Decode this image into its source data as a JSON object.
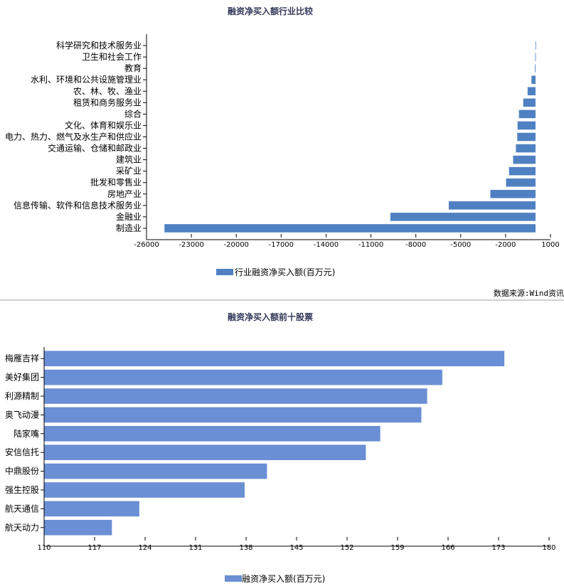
{
  "chart_data": [
    {
      "type": "bar",
      "orientation": "horizontal",
      "title": "融资净买入额行业比较",
      "categories": [
        "科学研究和技术服务业",
        "卫生和社会工作",
        "教育",
        "水利、环境和公共设施管理业",
        "农、林、牧、渔业",
        "租赁和商务服务业",
        "综合",
        "文化、体育和娱乐业",
        "电力、热力、燃气及水生产和供应业",
        "交通运输、仓储和邮政业",
        "建筑业",
        "采矿业",
        "批发和零售业",
        "房地产业",
        "信息传输、软件和信息技术服务业",
        "金融业",
        "制造业"
      ],
      "series": [
        {
          "name": "行业融资净买入额(百万元)",
          "values": [
            -10,
            -20,
            -40,
            -270,
            -530,
            -820,
            -1110,
            -1200,
            -1220,
            -1310,
            -1500,
            -1770,
            -1970,
            -3020,
            -5800,
            -9700,
            -24800
          ],
          "color": "#4f81c2"
        }
      ],
      "xlim": [
        -26000,
        1000
      ],
      "xticks": [
        -26000,
        -23000,
        -20000,
        -17000,
        -14000,
        -11000,
        -8000,
        -5000,
        -2000,
        1000
      ],
      "grid": false,
      "legend": "bottom-center"
    },
    {
      "type": "bar",
      "orientation": "horizontal",
      "title": "融资净买入额前十股票",
      "categories": [
        "梅雁吉祥",
        "美好集团",
        "利源精制",
        "奥飞动漫",
        "陆家嘴",
        "安信信托",
        "中鼎股份",
        "强生控股",
        "航天通信",
        "航天动力"
      ],
      "series": [
        {
          "name": "融资净买入额(百万元)",
          "values": [
            173.8,
            165.2,
            163.1,
            162.3,
            156.6,
            154.6,
            140.9,
            137.8,
            123.2,
            119.4
          ],
          "color": "#6a8fd4"
        }
      ],
      "xlim": [
        110,
        180
      ],
      "xticks": [
        110,
        117,
        124,
        131,
        138,
        145,
        152,
        159,
        166,
        173,
        180
      ],
      "grid": false,
      "legend": "bottom-center"
    }
  ],
  "source_note": "数据来源:Wind资讯"
}
